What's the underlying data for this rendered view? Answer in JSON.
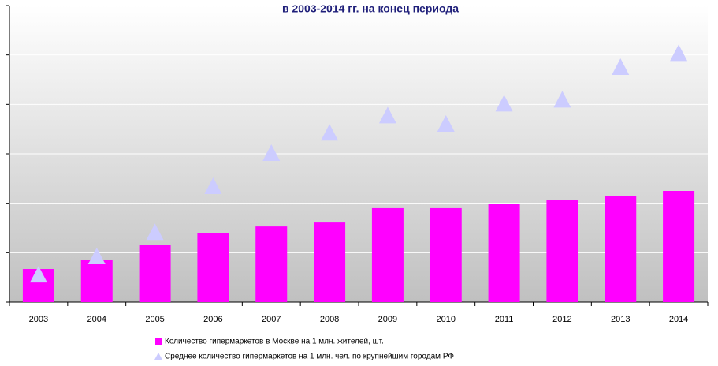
{
  "chart_data": {
    "type": "bar",
    "title": "в 2003-2014 гг. на конец периода",
    "categories": [
      "2003",
      "2004",
      "2005",
      "2006",
      "2007",
      "2008",
      "2009",
      "2010",
      "2011",
      "2012",
      "2013",
      "2014"
    ],
    "series": [
      {
        "name": "Количество гипермаркетов в Москве на 1 млн. жителей, шт.",
        "color": "#ff00ff",
        "mark": "bar",
        "values": [
          0.67,
          0.86,
          1.15,
          1.39,
          1.53,
          1.61,
          1.9,
          1.9,
          1.98,
          2.06,
          2.14,
          2.25
        ]
      },
      {
        "name": "Среднее количество гипермаркетов на 1 млн. чел. по крупнейшим городам РФ",
        "color": "#ccccff",
        "mark": "triangle",
        "values": [
          0.54,
          0.91,
          1.4,
          2.33,
          3.0,
          3.41,
          3.76,
          3.59,
          4.0,
          4.08,
          4.74,
          5.02
        ]
      }
    ],
    "ylim": [
      0,
      6
    ],
    "yticks": [
      0,
      1,
      2,
      3,
      4,
      5,
      6
    ],
    "grid": true,
    "legend": "bottom"
  }
}
